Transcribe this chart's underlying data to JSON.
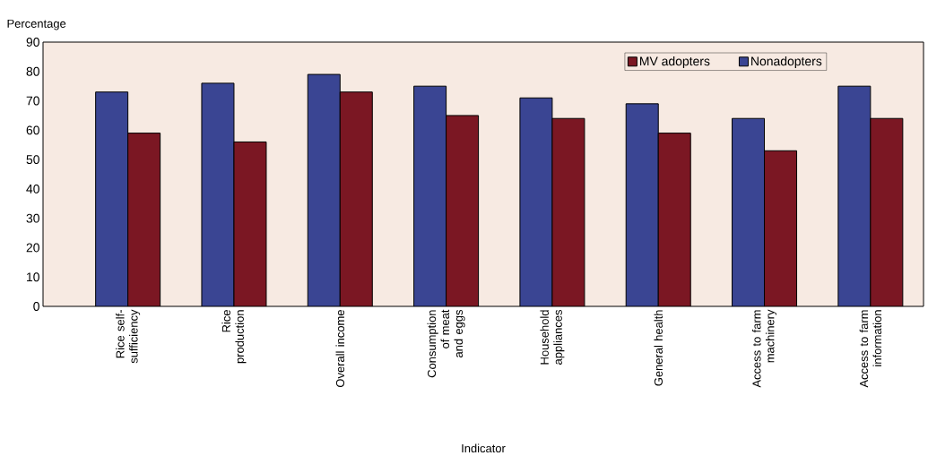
{
  "chart_data": {
    "type": "bar",
    "xlabel": "Indicator",
    "ylabel": "Percentage",
    "categories": [
      "Rice self-sufficiency",
      "Rice production",
      "Overall income",
      "Consumption of meat and eggs",
      "Household appliances",
      "General health",
      "Access to farm machinery",
      "Access to farm information"
    ],
    "series": [
      {
        "name": "Nonadopters",
        "color": "#3a4593",
        "values": [
          73,
          76,
          79,
          75,
          71,
          69,
          64,
          75
        ]
      },
      {
        "name": "MV adopters",
        "color": "#7b1723",
        "values": [
          59,
          56,
          73,
          65,
          64,
          59,
          53,
          64
        ]
      }
    ],
    "ylim": [
      0,
      90
    ],
    "yticks": [
      0,
      10,
      20,
      30,
      40,
      50,
      60,
      70,
      80,
      90
    ],
    "grid": false,
    "legend": "top right"
  }
}
